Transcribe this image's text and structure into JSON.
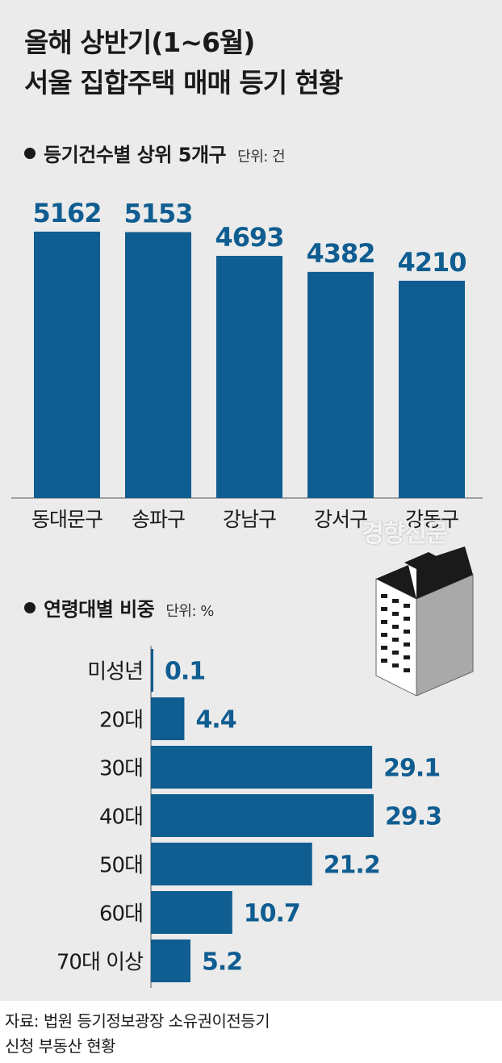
{
  "title": {
    "line1": "올해 상반기(1~6월)",
    "line2": "서울 집합주택 매매 등기 현황"
  },
  "colors": {
    "bar": "#0f5d91",
    "label": "#0f5d91",
    "background": "#ebebeb"
  },
  "watermark": "경향신문",
  "chart_data": [
    {
      "type": "bar",
      "title": "등기건수별 상위 5개구",
      "unit": "단위: 건",
      "categories": [
        "동대문구",
        "송파구",
        "강남구",
        "강서구",
        "강동구"
      ],
      "values": [
        5162,
        5153,
        4693,
        4382,
        4210
      ],
      "data_labels": [
        "5162",
        "5153",
        "4693",
        "4382",
        "4210"
      ],
      "orientation": "vertical",
      "grid": false,
      "legend": "none"
    },
    {
      "type": "bar",
      "title": "연령대별 비중",
      "unit": "단위: %",
      "categories": [
        "미성년",
        "20대",
        "30대",
        "40대",
        "50대",
        "60대",
        "70대 이상"
      ],
      "values": [
        0.1,
        4.4,
        29.1,
        29.3,
        21.2,
        10.7,
        5.2
      ],
      "data_labels": [
        "0.1",
        "4.4",
        "29.1",
        "29.3",
        "21.2",
        "10.7",
        "5.2"
      ],
      "orientation": "horizontal",
      "grid": false,
      "legend": "none"
    }
  ],
  "source": {
    "line1": "자료: 법원 등기정보광장 소유권이전등기",
    "line2": "신청 부동산 현황"
  }
}
